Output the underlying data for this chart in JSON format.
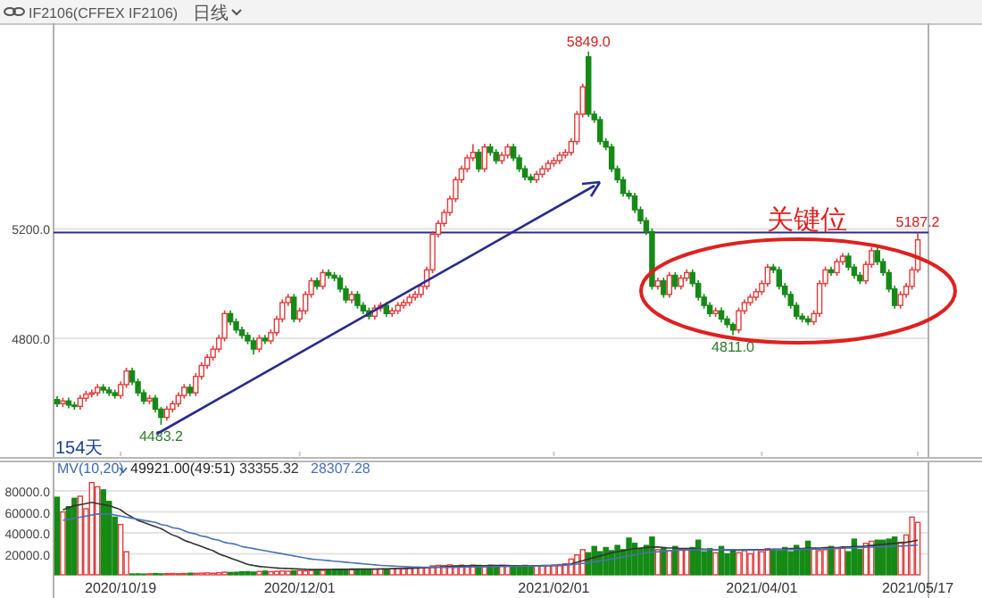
{
  "chart_data": [
    {
      "type": "candlestick",
      "title": "IF2106(CFFEX IF2106)",
      "subtitle": "日线",
      "categories": [
        null,
        null,
        null,
        null,
        null,
        null,
        null,
        null,
        null,
        null,
        null,
        "2020/10/19",
        null,
        null,
        null,
        null,
        null,
        null,
        null,
        null,
        null,
        null,
        null,
        null,
        null,
        null,
        null,
        null,
        null,
        null,
        null,
        null,
        null,
        null,
        null,
        null,
        null,
        null,
        null,
        null,
        null,
        null,
        "2020/12/01",
        null,
        null,
        null,
        null,
        null,
        null,
        null,
        null,
        null,
        null,
        null,
        null,
        null,
        null,
        null,
        null,
        null,
        null,
        null,
        null,
        null,
        null,
        null,
        null,
        null,
        null,
        null,
        null,
        null,
        null,
        null,
        null,
        null,
        null,
        null,
        null,
        null,
        null,
        null,
        null,
        null,
        null,
        null,
        "2021/02/01",
        null,
        null,
        null,
        null,
        null,
        null,
        null,
        null,
        null,
        null,
        null,
        null,
        null,
        null,
        null,
        null,
        null,
        null,
        null,
        null,
        null,
        null,
        null,
        null,
        null,
        null,
        null,
        null,
        null,
        null,
        null,
        null,
        null,
        null,
        null,
        "2021/04/01",
        null,
        null,
        null,
        null,
        null,
        null,
        null,
        null,
        null,
        null,
        null,
        null,
        null,
        null,
        null,
        null,
        null,
        null,
        null,
        null,
        null,
        null,
        null,
        null,
        null,
        null,
        "2021/05/17"
      ],
      "ohlc": [
        [
          4575,
          4587,
          4548,
          4560
        ],
        [
          4560,
          4582,
          4548,
          4570
        ],
        [
          4570,
          4582,
          4543,
          4555
        ],
        [
          4555,
          4567,
          4538,
          4550
        ],
        [
          4550,
          4592,
          4538,
          4580
        ],
        [
          4580,
          4607,
          4568,
          4595
        ],
        [
          4595,
          4612,
          4583,
          4600
        ],
        [
          4600,
          4632,
          4588,
          4620
        ],
        [
          4620,
          4632,
          4598,
          4610
        ],
        [
          4610,
          4622,
          4588,
          4600
        ],
        [
          4600,
          4612,
          4578,
          4590
        ],
        [
          4590,
          4642,
          4578,
          4630
        ],
        [
          4630,
          4692,
          4618,
          4680
        ],
        [
          4680,
          4692,
          4628,
          4640
        ],
        [
          4640,
          4652,
          4588,
          4600
        ],
        [
          4600,
          4612,
          4558,
          4570
        ],
        [
          4570,
          4592,
          4558,
          4580
        ],
        [
          4580,
          4592,
          4528,
          4540
        ],
        [
          4540,
          4548,
          4483.2,
          4510
        ],
        [
          4510,
          4552,
          4498,
          4540
        ],
        [
          4540,
          4572,
          4528,
          4560
        ],
        [
          4560,
          4602,
          4548,
          4590
        ],
        [
          4590,
          4632,
          4578,
          4620
        ],
        [
          4620,
          4632,
          4588,
          4600
        ],
        [
          4600,
          4672,
          4588,
          4660
        ],
        [
          4660,
          4712,
          4648,
          4700
        ],
        [
          4700,
          4742,
          4688,
          4730
        ],
        [
          4730,
          4772,
          4718,
          4760
        ],
        [
          4760,
          4812,
          4748,
          4800
        ],
        [
          4800,
          4902,
          4788,
          4890
        ],
        [
          4890,
          4902,
          4848,
          4860
        ],
        [
          4860,
          4872,
          4818,
          4830
        ],
        [
          4830,
          4842,
          4798,
          4810
        ],
        [
          4810,
          4822,
          4778,
          4790
        ],
        [
          4790,
          4802,
          4740,
          4760
        ],
        [
          4760,
          4812,
          4748,
          4800
        ],
        [
          4800,
          4812,
          4778,
          4790
        ],
        [
          4790,
          4832,
          4778,
          4820
        ],
        [
          4820,
          4882,
          4808,
          4870
        ],
        [
          4870,
          4942,
          4858,
          4930
        ],
        [
          4930,
          4962,
          4918,
          4950
        ],
        [
          4950,
          4962,
          4858,
          4870
        ],
        [
          4870,
          4912,
          4858,
          4900
        ],
        [
          4900,
          4972,
          4888,
          4960
        ],
        [
          4960,
          5022,
          4948,
          5010
        ],
        [
          5010,
          5022,
          4978,
          4990
        ],
        [
          4990,
          5052,
          4978,
          5040
        ],
        [
          5040,
          5052,
          5018,
          5030
        ],
        [
          5030,
          5042,
          5008,
          5020
        ],
        [
          5020,
          5032,
          4968,
          4980
        ],
        [
          4980,
          4992,
          4928,
          4940
        ],
        [
          4940,
          4972,
          4928,
          4960
        ],
        [
          4960,
          4972,
          4908,
          4920
        ],
        [
          4920,
          4932,
          4888,
          4900
        ],
        [
          4900,
          4912,
          4868,
          4880
        ],
        [
          4880,
          4922,
          4868,
          4910
        ],
        [
          4910,
          4932,
          4898,
          4920
        ],
        [
          4920,
          4932,
          4878,
          4890
        ],
        [
          4890,
          4912,
          4878,
          4900
        ],
        [
          4900,
          4932,
          4888,
          4920
        ],
        [
          4920,
          4942,
          4908,
          4930
        ],
        [
          4930,
          4962,
          4918,
          4950
        ],
        [
          4950,
          4972,
          4938,
          4960
        ],
        [
          4960,
          5002,
          4948,
          4990
        ],
        [
          4990,
          5062,
          4978,
          5050
        ],
        [
          5050,
          5192,
          5038,
          5180
        ],
        [
          5180,
          5232,
          5168,
          5220
        ],
        [
          5220,
          5272,
          5208,
          5260
        ],
        [
          5260,
          5322,
          5248,
          5310
        ],
        [
          5310,
          5392,
          5298,
          5380
        ],
        [
          5380,
          5432,
          5368,
          5420
        ],
        [
          5420,
          5472,
          5408,
          5460
        ],
        [
          5460,
          5510,
          5448,
          5480
        ],
        [
          5480,
          5492,
          5408,
          5420
        ],
        [
          5420,
          5512,
          5408,
          5500
        ],
        [
          5500,
          5512,
          5468,
          5480
        ],
        [
          5480,
          5492,
          5438,
          5450
        ],
        [
          5450,
          5482,
          5438,
          5470
        ],
        [
          5470,
          5512,
          5458,
          5500
        ],
        [
          5500,
          5512,
          5448,
          5460
        ],
        [
          5460,
          5472,
          5408,
          5420
        ],
        [
          5420,
          5432,
          5378,
          5390
        ],
        [
          5390,
          5402,
          5368,
          5380
        ],
        [
          5380,
          5412,
          5368,
          5400
        ],
        [
          5400,
          5432,
          5388,
          5420
        ],
        [
          5420,
          5452,
          5408,
          5440
        ],
        [
          5440,
          5462,
          5428,
          5450
        ],
        [
          5450,
          5482,
          5438,
          5470
        ],
        [
          5470,
          5492,
          5458,
          5480
        ],
        [
          5480,
          5532,
          5468,
          5520
        ],
        [
          5520,
          5632,
          5508,
          5620
        ],
        [
          5620,
          5732,
          5608,
          5720
        ],
        [
          5830,
          5849,
          5610,
          5620
        ],
        [
          5620,
          5632,
          5588,
          5600
        ],
        [
          5600,
          5612,
          5508,
          5520
        ],
        [
          5520,
          5532,
          5488,
          5500
        ],
        [
          5500,
          5512,
          5408,
          5420
        ],
        [
          5420,
          5432,
          5368,
          5380
        ],
        [
          5380,
          5392,
          5318,
          5330
        ],
        [
          5330,
          5342,
          5308,
          5320
        ],
        [
          5320,
          5332,
          5258,
          5270
        ],
        [
          5270,
          5282,
          5218,
          5230
        ],
        [
          5230,
          5242,
          5178,
          5190
        ],
        [
          5190,
          5202,
          4978,
          4990
        ],
        [
          4990,
          5022,
          4978,
          5010
        ],
        [
          5010,
          5022,
          4948,
          4960
        ],
        [
          4960,
          5042,
          4948,
          5030
        ],
        [
          5030,
          5042,
          4978,
          4990
        ],
        [
          4990,
          5032,
          4978,
          5020
        ],
        [
          5020,
          5052,
          5008,
          5040
        ],
        [
          5040,
          5052,
          4988,
          5000
        ],
        [
          5000,
          5012,
          4938,
          4950
        ],
        [
          4950,
          4962,
          4908,
          4920
        ],
        [
          4920,
          4932,
          4878,
          4890
        ],
        [
          4890,
          4912,
          4878,
          4900
        ],
        [
          4900,
          4912,
          4858,
          4870
        ],
        [
          4870,
          4882,
          4838,
          4850
        ],
        [
          4850,
          4858,
          4811,
          4830
        ],
        [
          4830,
          4912,
          4818,
          4900
        ],
        [
          4900,
          4942,
          4888,
          4930
        ],
        [
          4930,
          4962,
          4918,
          4950
        ],
        [
          4950,
          4982,
          4938,
          4970
        ],
        [
          4970,
          5012,
          4958,
          5000
        ],
        [
          5000,
          5072,
          4988,
          5060
        ],
        [
          5060,
          5072,
          5038,
          5050
        ],
        [
          5050,
          5062,
          4978,
          4990
        ],
        [
          4990,
          5002,
          4948,
          4960
        ],
        [
          4960,
          4972,
          4908,
          4920
        ],
        [
          4920,
          4932,
          4868,
          4880
        ],
        [
          4880,
          4892,
          4858,
          4870
        ],
        [
          4870,
          4882,
          4848,
          4860
        ],
        [
          4860,
          4902,
          4848,
          4890
        ],
        [
          4890,
          5012,
          4878,
          5000
        ],
        [
          5000,
          5062,
          4988,
          5050
        ],
        [
          5050,
          5062,
          5028,
          5040
        ],
        [
          5040,
          5092,
          5028,
          5080
        ],
        [
          5080,
          5112,
          5068,
          5100
        ],
        [
          5100,
          5112,
          5048,
          5060
        ],
        [
          5060,
          5072,
          5018,
          5030
        ],
        [
          5030,
          5042,
          4998,
          5010
        ],
        [
          5010,
          5082,
          4998,
          5070
        ],
        [
          5070,
          5132,
          5058,
          5120
        ],
        [
          5120,
          5132,
          5068,
          5080
        ],
        [
          5080,
          5092,
          5028,
          5040
        ],
        [
          5040,
          5052,
          4968,
          4980
        ],
        [
          4980,
          4992,
          4908,
          4920
        ],
        [
          4920,
          4972,
          4908,
          4960
        ],
        [
          4960,
          5002,
          4948,
          4990
        ],
        [
          4990,
          5062,
          4978,
          5050
        ],
        [
          5050,
          5187.2,
          5040,
          5160
        ]
      ],
      "ylim": [
        4365,
        5940
      ],
      "yticks": [
        {
          "value": 4800,
          "label": "4800.0"
        },
        {
          "value": 5200,
          "label": "5200.0"
        }
      ],
      "grid": "y",
      "tick_labels": "y",
      "ref_lines": [
        {
          "axis": "y",
          "value": 5187.2,
          "color": "#2b2b8c"
        }
      ],
      "annotations": [
        {
          "text": "5849.0",
          "y": 5849
        },
        {
          "text": "5187.2",
          "y": 5187.2
        },
        {
          "text": "4811.0",
          "y": 4811
        },
        {
          "text": "4483.2",
          "y": 4483.2
        },
        "关键位",
        "154天"
      ]
    },
    {
      "type": "bar",
      "categories": [
        null,
        null,
        null,
        null,
        null,
        null,
        null,
        null,
        null,
        null,
        null,
        "2020/10/19",
        null,
        null,
        null,
        null,
        null,
        null,
        null,
        null,
        null,
        null,
        null,
        null,
        null,
        null,
        null,
        null,
        null,
        null,
        null,
        null,
        null,
        null,
        null,
        null,
        null,
        null,
        null,
        null,
        null,
        null,
        "2020/12/01",
        null,
        null,
        null,
        null,
        null,
        null,
        null,
        null,
        null,
        null,
        null,
        null,
        null,
        null,
        null,
        null,
        null,
        null,
        null,
        null,
        null,
        null,
        null,
        null,
        null,
        null,
        null,
        null,
        null,
        null,
        null,
        null,
        null,
        null,
        null,
        null,
        null,
        null,
        null,
        null,
        null,
        null,
        null,
        "2021/02/01",
        null,
        null,
        null,
        null,
        null,
        null,
        null,
        null,
        null,
        null,
        null,
        null,
        null,
        null,
        null,
        null,
        null,
        null,
        null,
        null,
        null,
        null,
        null,
        null,
        null,
        null,
        null,
        null,
        null,
        null,
        null,
        null,
        null,
        null,
        null,
        "2021/04/01",
        null,
        null,
        null,
        null,
        null,
        null,
        null,
        null,
        null,
        null,
        null,
        null,
        null,
        null,
        null,
        null,
        null,
        null,
        null,
        null,
        null,
        null,
        null,
        null,
        null,
        null,
        "2021/05/17"
      ],
      "series": [
        {
          "values": [
            74000,
            60000,
            65000,
            73000,
            75000,
            63000,
            88000,
            84000,
            81000,
            70000,
            55000,
            48000,
            22000,
            800,
            900,
            700,
            1000,
            1200,
            900,
            1100,
            1300,
            1000,
            1200,
            1500,
            1400,
            1600,
            1800,
            1500,
            2000,
            2500,
            2200,
            2400,
            2800,
            3000,
            2600,
            3200,
            3500,
            3000,
            3300,
            3600,
            3400,
            3800,
            4000,
            3700,
            4200,
            4100,
            4300,
            4600,
            4400,
            4800,
            5000,
            4700,
            5200,
            5100,
            4900,
            5300,
            5600,
            5400,
            5800,
            6000,
            5700,
            6200,
            6500,
            6800,
            7000,
            8500,
            9000,
            8800,
            9500,
            8600,
            9200,
            8800,
            9300,
            9000,
            8700,
            9100,
            8500,
            9000,
            8800,
            8200,
            8600,
            9000,
            8400,
            8700,
            8300,
            8800,
            9200,
            9800,
            10500,
            15000,
            19000,
            24000,
            21000,
            27000,
            22000,
            26000,
            23000,
            28000,
            24000,
            35000,
            30000,
            25000,
            28000,
            36000,
            24000,
            26000,
            23000,
            27000,
            24000,
            25000,
            26000,
            33000,
            22000,
            25000,
            21000,
            27000,
            20000,
            24000,
            21000,
            23000,
            20000,
            24000,
            22000,
            25000,
            24000,
            23000,
            26000,
            22000,
            28000,
            24000,
            32000,
            25000,
            23000,
            24000,
            27000,
            25000,
            26000,
            22000,
            34000,
            24000,
            30000,
            32000,
            33000,
            33000,
            34000,
            36000,
            31000,
            38000,
            55000,
            50000
          ],
          "colors": [
            "#158a15",
            "#e03c3c",
            "#158a15",
            "#158a15",
            "#e03c3c",
            "#e03c3c",
            "#e03c3c",
            "#e03c3c",
            "#158a15",
            "#158a15",
            "#158a15",
            "#e03c3c",
            "#e03c3c",
            "#158a15",
            "#158a15",
            "#158a15",
            "#e03c3c",
            "#158a15",
            "#158a15",
            "#e03c3c",
            "#e03c3c",
            "#e03c3c",
            "#e03c3c",
            "#158a15",
            "#e03c3c",
            "#e03c3c",
            "#e03c3c",
            "#e03c3c",
            "#e03c3c",
            "#e03c3c",
            "#158a15",
            "#158a15",
            "#158a15",
            "#158a15",
            "#158a15",
            "#e03c3c",
            "#158a15",
            "#e03c3c",
            "#e03c3c",
            "#e03c3c",
            "#e03c3c",
            "#158a15",
            "#e03c3c",
            "#e03c3c",
            "#e03c3c",
            "#158a15",
            "#e03c3c",
            "#158a15",
            "#158a15",
            "#158a15",
            "#158a15",
            "#e03c3c",
            "#158a15",
            "#158a15",
            "#158a15",
            "#e03c3c",
            "#e03c3c",
            "#158a15",
            "#e03c3c",
            "#e03c3c",
            "#e03c3c",
            "#e03c3c",
            "#e03c3c",
            "#e03c3c",
            "#e03c3c",
            "#e03c3c",
            "#e03c3c",
            "#e03c3c",
            "#e03c3c",
            "#e03c3c",
            "#e03c3c",
            "#e03c3c",
            "#e03c3c",
            "#158a15",
            "#e03c3c",
            "#158a15",
            "#158a15",
            "#e03c3c",
            "#e03c3c",
            "#158a15",
            "#158a15",
            "#158a15",
            "#158a15",
            "#e03c3c",
            "#e03c3c",
            "#e03c3c",
            "#e03c3c",
            "#e03c3c",
            "#e03c3c",
            "#e03c3c",
            "#e03c3c",
            "#e03c3c",
            "#158a15",
            "#158a15",
            "#158a15",
            "#158a15",
            "#158a15",
            "#158a15",
            "#158a15",
            "#158a15",
            "#158a15",
            "#158a15",
            "#158a15",
            "#158a15",
            "#e03c3c",
            "#158a15",
            "#e03c3c",
            "#158a15",
            "#e03c3c",
            "#e03c3c",
            "#158a15",
            "#158a15",
            "#158a15",
            "#158a15",
            "#e03c3c",
            "#158a15",
            "#158a15",
            "#158a15",
            "#e03c3c",
            "#e03c3c",
            "#e03c3c",
            "#e03c3c",
            "#e03c3c",
            "#e03c3c",
            "#158a15",
            "#158a15",
            "#158a15",
            "#158a15",
            "#158a15",
            "#158a15",
            "#158a15",
            "#e03c3c",
            "#e03c3c",
            "#e03c3c",
            "#158a15",
            "#e03c3c",
            "#e03c3c",
            "#158a15",
            "#158a15",
            "#158a15",
            "#e03c3c",
            "#e03c3c",
            "#158a15",
            "#158a15",
            "#158a15",
            "#158a15",
            "#e03c3c",
            "#e03c3c",
            "#e03c3c",
            "#e03c3c"
          ]
        },
        {
          "type": "line",
          "color": "#333333",
          "values": [
            null,
            62000,
            64000,
            66000,
            67000,
            68000,
            69000,
            68000,
            67000,
            66000,
            64000,
            62000,
            58000,
            55000,
            52000,
            50000,
            48000,
            46000,
            44000,
            41000,
            38000,
            36000,
            33000,
            31000,
            29000,
            27000,
            25000,
            23000,
            20000,
            18000,
            16000,
            14000,
            12000,
            10000,
            9000,
            8000,
            7500,
            7000,
            6500,
            6200,
            6000,
            5800,
            5500,
            5200,
            5000,
            5000,
            5000,
            5100,
            5200,
            5200,
            5300,
            5400,
            5400,
            5500,
            5500,
            5600,
            5600,
            5700,
            5800,
            5900,
            6000,
            6200,
            6400,
            6600,
            6800,
            7100,
            7400,
            7700,
            8000,
            8200,
            8400,
            8500,
            8600,
            8700,
            8700,
            8800,
            8800,
            8800,
            8800,
            8700,
            8700,
            8700,
            8700,
            8700,
            8800,
            8800,
            8900,
            9000,
            9500,
            10500,
            12000,
            13500,
            15000,
            16500,
            18000,
            19500,
            21000,
            22000,
            23000,
            24000,
            25000,
            25500,
            26000,
            26500,
            26500,
            26000,
            25500,
            25500,
            25000,
            25000,
            25000,
            24500,
            24500,
            24000,
            24000,
            24000,
            23500,
            23500,
            23500,
            24000,
            24000,
            24000,
            24000,
            24000,
            24500,
            24500,
            24500,
            25000,
            25000,
            25000,
            25500,
            25500,
            25500,
            26000,
            26000,
            26000,
            26500,
            26500,
            27000,
            27000,
            27500,
            28000,
            28500,
            29000,
            29500,
            30000,
            30500,
            31000,
            32000,
            33000
          ]
        },
        {
          "type": "line",
          "color": "#4a70b8",
          "values": [
            null,
            52000,
            53000,
            54000,
            55000,
            56000,
            57000,
            58000,
            58000,
            58000,
            57000,
            56000,
            55000,
            54000,
            53000,
            52000,
            51000,
            50000,
            48000,
            47000,
            45000,
            44000,
            42000,
            40000,
            39000,
            37000,
            36000,
            34000,
            33000,
            31000,
            30000,
            29000,
            27000,
            26000,
            25000,
            24000,
            23000,
            22000,
            21000,
            20000,
            19000,
            18000,
            17000,
            16000,
            15000,
            14500,
            14000,
            13500,
            13000,
            12500,
            12000,
            11500,
            11000,
            10500,
            10000,
            9500,
            9000,
            8700,
            8400,
            8100,
            7800,
            7600,
            7400,
            7300,
            7200,
            7100,
            7000,
            7000,
            7000,
            7100,
            7200,
            7300,
            7400,
            7500,
            7600,
            7700,
            7800,
            7900,
            8000,
            8100,
            8200,
            8300,
            8400,
            8500,
            8600,
            8700,
            8800,
            9000,
            9300,
            9700,
            10200,
            10800,
            11500,
            12300,
            13200,
            14000,
            15000,
            16000,
            17000,
            18000,
            19000,
            20000,
            20800,
            21500,
            22000,
            22500,
            23000,
            23300,
            23500,
            23700,
            23800,
            23900,
            24000,
            24000,
            24000,
            24000,
            24000,
            23900,
            23800,
            23800,
            23700,
            23700,
            23700,
            23800,
            23900,
            24000,
            24000,
            24100,
            24200,
            24300,
            24400,
            24500,
            24600,
            24800,
            25000,
            25200,
            25400,
            25600,
            25800,
            26000,
            26200,
            26400,
            26600,
            26800,
            27000,
            27200,
            27400,
            27700,
            28000,
            28300
          ]
        }
      ],
      "ylim": [
        0,
        92000
      ],
      "yticks": [
        {
          "value": 20000,
          "label": "20000.0"
        },
        {
          "value": 40000,
          "label": "40000.0"
        },
        {
          "value": 60000,
          "label": "60000.0"
        },
        {
          "value": 80000,
          "label": "80000.0"
        }
      ],
      "grid": "y",
      "annotations": [
        "MV(10,20)",
        "49921.00(49:51)",
        "33355.32",
        "28307.28"
      ]
    }
  ]
}
